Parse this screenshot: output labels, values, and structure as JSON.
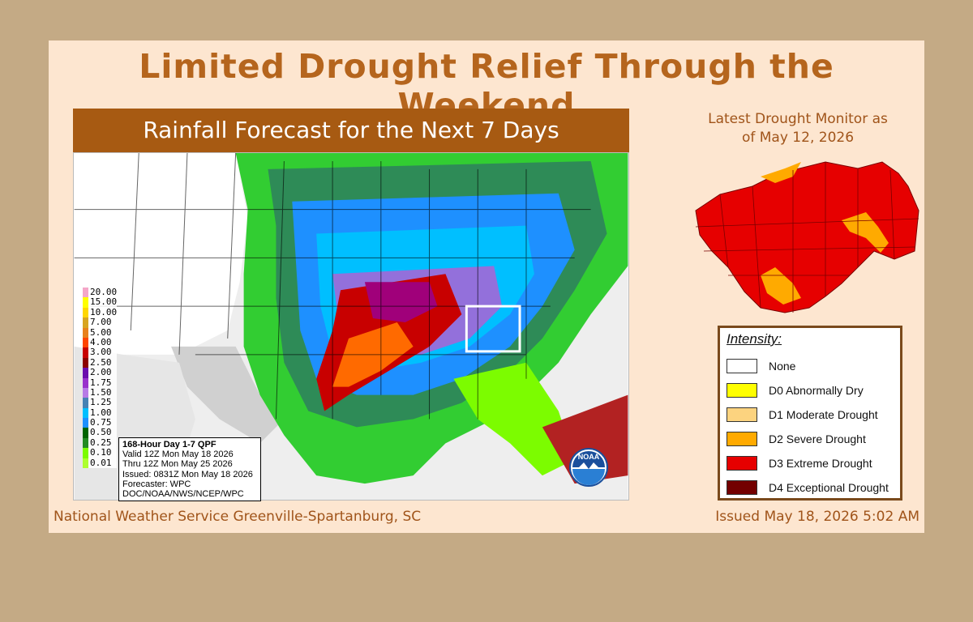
{
  "title": "Limited Drought Relief Through the Weekend",
  "forecast": {
    "banner": "Rainfall Forecast for the Next 7 Days",
    "legend_values": [
      "20.00",
      "15.00",
      "10.00",
      "7.00",
      "5.00",
      "4.00",
      "3.00",
      "2.50",
      "2.00",
      "1.75",
      "1.50",
      "1.25",
      "1.00",
      "0.75",
      "0.50",
      "0.25",
      "0.10",
      "0.01"
    ],
    "legend_colors": [
      "#f5a6c8",
      "#ffff00",
      "#ffd700",
      "#d8a520",
      "#e8811c",
      "#ff4500",
      "#c80000",
      "#8b0000",
      "#6a0dad",
      "#9932cc",
      "#b77be6",
      "#4682b4",
      "#00bfff",
      "#1e90ff",
      "#006400",
      "#228b22",
      "#7cfc00",
      "#adff2f"
    ],
    "info": {
      "line1": "168-Hour Day 1-7 QPF",
      "line2": "Valid 12Z Mon May 18 2026",
      "line3": "Thru 12Z Mon May 25 2026",
      "line4": "Issued: 0831Z Mon May 18 2026",
      "line5": "Forecaster: WPC",
      "line6": "DOC/NOAA/NWS/NCEP/WPC"
    },
    "logo_text": "NOAA"
  },
  "drought_monitor": {
    "title_line1": "Latest Drought Monitor as",
    "title_line2": "of May 12, 2026",
    "legend_title": "Intensity:",
    "categories": [
      {
        "label": "None",
        "color": "#ffffff"
      },
      {
        "label": "D0 Abnormally Dry",
        "color": "#ffff00"
      },
      {
        "label": "D1 Moderate Drought",
        "color": "#fcd37f"
      },
      {
        "label": "D2 Severe Drought",
        "color": "#ffaa00"
      },
      {
        "label": "D3 Extreme Drought",
        "color": "#e60000"
      },
      {
        "label": "D4 Exceptional Drought",
        "color": "#730000"
      }
    ]
  },
  "footer": {
    "office": "National Weather Service Greenville-Spartanburg, SC",
    "issued": "Issued May 18, 2026 5:02 AM"
  }
}
